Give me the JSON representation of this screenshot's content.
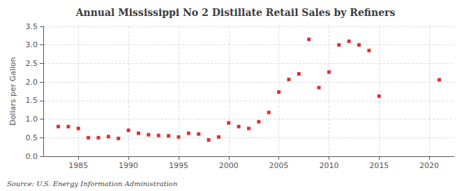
{
  "chart_data": {
    "type": "scatter",
    "title": "Annual Mississippi No 2 Distillate Retail Sales by Refiners",
    "ylabel": "Dollars per Gallon",
    "annotation": "Source: U.S. Energy Information Administration",
    "x": [
      1983,
      1984,
      1985,
      1986,
      1987,
      1988,
      1989,
      1990,
      1991,
      1992,
      1993,
      1994,
      1995,
      1996,
      1997,
      1998,
      1999,
      2000,
      2001,
      2002,
      2003,
      2004,
      2005,
      2006,
      2007,
      2008,
      2009,
      2010,
      2011,
      2012,
      2013,
      2014,
      2015,
      2021
    ],
    "values": [
      0.8,
      0.8,
      0.75,
      0.5,
      0.5,
      0.53,
      0.48,
      0.7,
      0.62,
      0.58,
      0.56,
      0.55,
      0.52,
      0.62,
      0.6,
      0.44,
      0.52,
      0.9,
      0.8,
      0.75,
      0.93,
      1.18,
      1.73,
      2.07,
      2.22,
      3.15,
      1.85,
      2.27,
      3.0,
      3.1,
      3.0,
      2.85,
      1.62,
      2.06
    ],
    "color": "#cc0000",
    "marker": "square",
    "xlim": [
      1981.5,
      2022.5
    ],
    "xticks": [
      1985,
      1990,
      1995,
      2000,
      2005,
      2010,
      2015,
      2020
    ],
    "ylim": [
      0.0,
      3.5
    ],
    "yticks": [
      {
        "value": 0,
        "label": "0.0"
      },
      0.5,
      {
        "value": 1,
        "label": "1.0"
      },
      1.5,
      {
        "value": 2,
        "label": "2.0"
      },
      2.5,
      {
        "value": 3,
        "label": "3.0"
      },
      3.5
    ],
    "grid": true
  }
}
